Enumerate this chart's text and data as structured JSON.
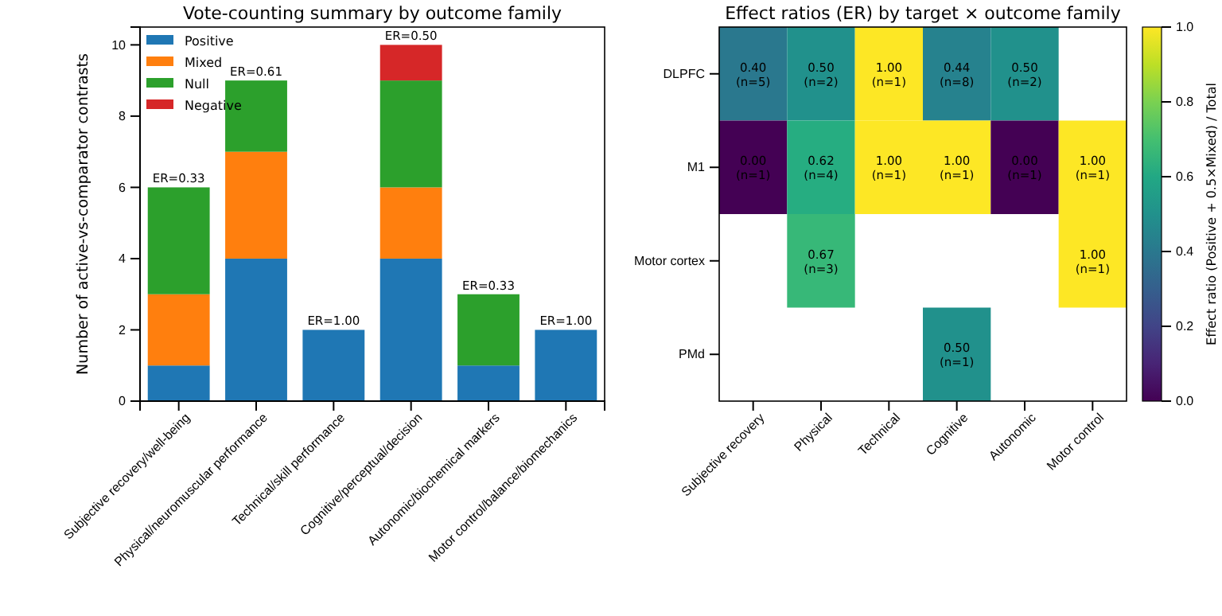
{
  "chart_data": [
    {
      "type": "bar",
      "title": "Vote-counting summary by outcome family",
      "ylabel": "Number of active-vs-comparator contrasts",
      "categories": [
        "Subjective recovery/well-being",
        "Physical/neuromuscular performance",
        "Technical/skill performance",
        "Cognitive/perceptual/decision",
        "Autonomic/biochemical markers",
        "Motor control/balance/biomechanics"
      ],
      "stacked": true,
      "series": [
        {
          "name": "Positive",
          "color": "#1f77b4",
          "values": [
            1,
            4,
            2,
            4,
            1,
            2
          ]
        },
        {
          "name": "Mixed",
          "color": "#ff7f0e",
          "values": [
            2,
            3,
            0,
            2,
            0,
            0
          ]
        },
        {
          "name": "Null",
          "color": "#2ca02c",
          "values": [
            3,
            2,
            0,
            3,
            2,
            0
          ]
        },
        {
          "name": "Negative",
          "color": "#d62728",
          "values": [
            0,
            0,
            0,
            1,
            0,
            0
          ]
        }
      ],
      "annotations": [
        {
          "text": "ER=0.33",
          "x": "Subjective recovery/well-being",
          "y": 6
        },
        {
          "text": "ER=0.61",
          "x": "Physical/neuromuscular performance",
          "y": 9
        },
        {
          "text": "ER=1.00",
          "x": "Technical/skill performance",
          "y": 2
        },
        {
          "text": "ER=0.50",
          "x": "Cognitive/perceptual/decision",
          "y": 10
        },
        {
          "text": "ER=0.33",
          "x": "Autonomic/biochemical markers",
          "y": 3
        },
        {
          "text": "ER=1.00",
          "x": "Motor control/balance/biomechanics",
          "y": 2
        }
      ],
      "ylim": [
        0,
        10.5
      ],
      "yticks": [
        0,
        2,
        4,
        6,
        8,
        10
      ],
      "legend": "top left",
      "grid": false
    },
    {
      "type": "heatmap",
      "title": "Effect ratios (ER) by target × outcome family",
      "categories": [
        "Subjective recovery",
        "Physical",
        "Technical",
        "Cognitive",
        "Autonomic",
        "Motor control"
      ],
      "y_categories": [
        "DLPFC",
        "M1",
        "Motor cortex",
        "PMd"
      ],
      "cells": [
        [
          0.4,
          0.5,
          1.0,
          0.44,
          0.5,
          null
        ],
        [
          0.0,
          0.62,
          1.0,
          1.0,
          0.0,
          1.0
        ],
        [
          null,
          0.67,
          null,
          null,
          null,
          1.0
        ],
        [
          null,
          null,
          null,
          0.5,
          null,
          null
        ]
      ],
      "cell_labels": [
        [
          "0.40\n(n=5)",
          "0.50\n(n=2)",
          "1.00\n(n=1)",
          "0.44\n(n=8)",
          "0.50\n(n=2)",
          null
        ],
        [
          "0.00\n(n=1)",
          "0.62\n(n=4)",
          "1.00\n(n=1)",
          "1.00\n(n=1)",
          "0.00\n(n=1)",
          "1.00\n(n=1)"
        ],
        [
          null,
          "0.67\n(n=3)",
          null,
          null,
          null,
          "1.00\n(n=1)"
        ],
        [
          null,
          null,
          null,
          "0.50\n(n=1)",
          null,
          null
        ]
      ],
      "clabel": "Effect ratio (Positive + 0.5×Mixed) / Total",
      "clim": [
        0,
        1
      ],
      "cticks": [
        {
          "value": 0,
          "label": "0.0"
        },
        {
          "value": 0.2,
          "label": "0.2"
        },
        {
          "value": 0.4,
          "label": "0.4"
        },
        {
          "value": 0.6,
          "label": "0.6"
        },
        {
          "value": 0.8,
          "label": "0.8"
        },
        {
          "value": 1,
          "label": "1.0"
        }
      ]
    }
  ]
}
